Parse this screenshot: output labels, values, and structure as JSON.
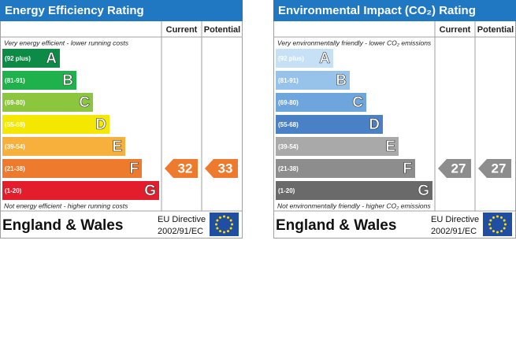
{
  "panels": [
    {
      "title": "Energy Efficiency Rating",
      "title_color": "#1f78c1",
      "columns": [
        "Current",
        "Potential"
      ],
      "top_note": "Very energy efficient - lower running costs",
      "bands": [
        {
          "range": "(92 plus)",
          "letter": "A",
          "color": "#0c8a46"
        },
        {
          "range": "(81-91)",
          "letter": "B",
          "color": "#1fb14b"
        },
        {
          "range": "(69-80)",
          "letter": "C",
          "color": "#8cc63f"
        },
        {
          "range": "(55-68)",
          "letter": "D",
          "color": "#f5e800"
        },
        {
          "range": "(39-54)",
          "letter": "E",
          "color": "#f6b03b"
        },
        {
          "range": "(21-38)",
          "letter": "F",
          "color": "#ee7a2d"
        },
        {
          "range": "(1-20)",
          "letter": "G",
          "color": "#e31d2b"
        }
      ],
      "bottom_note": "Not energy efficient - higher running costs",
      "current": 32,
      "potential": 33,
      "arrow_color": "#ee7a2d",
      "footer": "England & Wales",
      "directive": [
        "EU Directive",
        "2002/91/EC"
      ]
    },
    {
      "title": "Environmental Impact (CO₂) Rating",
      "title_color": "#1f78c1",
      "columns": [
        "Current",
        "Potential"
      ],
      "top_note": "Very environmentally friendly - lower CO₂ emissions",
      "bands": [
        {
          "range": "(92 plus)",
          "letter": "A",
          "color": "#c6e0f5"
        },
        {
          "range": "(81-91)",
          "letter": "B",
          "color": "#97c3ea"
        },
        {
          "range": "(69-80)",
          "letter": "C",
          "color": "#6fa5dd"
        },
        {
          "range": "(55-68)",
          "letter": "D",
          "color": "#4a80c6"
        },
        {
          "range": "(39-54)",
          "letter": "E",
          "color": "#a9a9a9"
        },
        {
          "range": "(21-38)",
          "letter": "F",
          "color": "#8d8d8d"
        },
        {
          "range": "(1-20)",
          "letter": "G",
          "color": "#6a6a6a"
        }
      ],
      "bottom_note": "Not environmentally friendly - higher CO₂ emissions",
      "current": 27,
      "potential": 27,
      "arrow_color": "#8d8d8d",
      "footer": "England & Wales",
      "directive": [
        "EU Directive",
        "2002/91/EC"
      ]
    }
  ]
}
